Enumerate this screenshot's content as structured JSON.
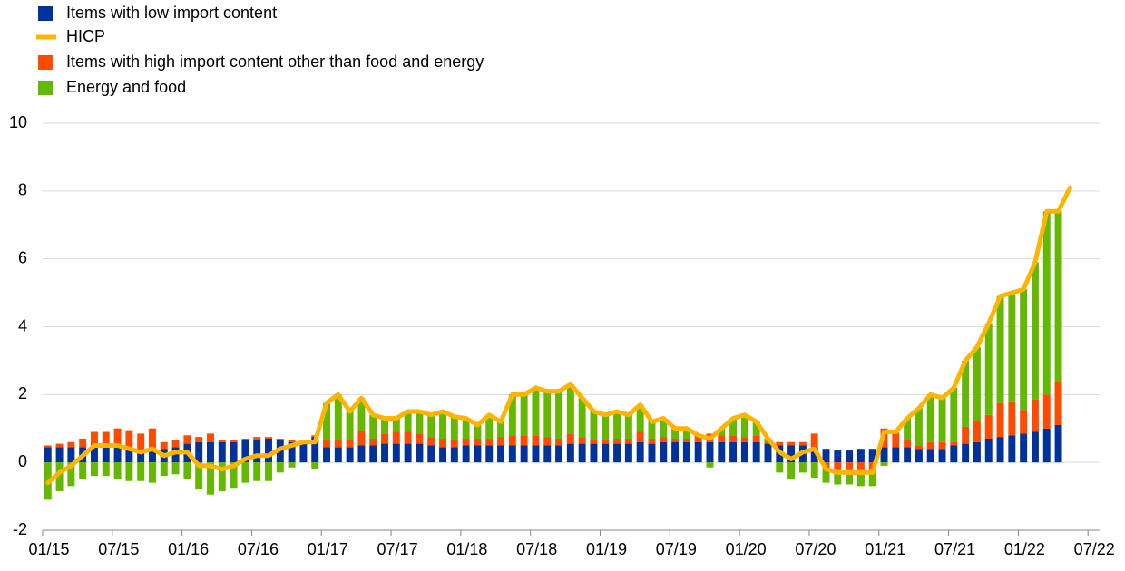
{
  "chart_data": {
    "type": "stacked-bar-line",
    "categories": [
      "01/15",
      null,
      null,
      null,
      null,
      null,
      "07/15",
      null,
      null,
      null,
      null,
      null,
      "01/16",
      null,
      null,
      null,
      null,
      null,
      "07/16",
      null,
      null,
      null,
      null,
      null,
      "01/17",
      null,
      null,
      null,
      null,
      null,
      "07/17",
      null,
      null,
      null,
      null,
      null,
      "01/18",
      null,
      null,
      null,
      null,
      null,
      "07/18",
      null,
      null,
      null,
      null,
      null,
      "01/19",
      null,
      null,
      null,
      null,
      null,
      "07/19",
      null,
      null,
      null,
      null,
      null,
      "01/20",
      null,
      null,
      null,
      null,
      null,
      "07/20",
      null,
      null,
      null,
      null,
      null,
      "01/21",
      null,
      null,
      null,
      null,
      null,
      "07/21",
      null,
      null,
      null,
      null,
      null,
      "01/22",
      null,
      null,
      null,
      null,
      null,
      "07/22"
    ],
    "series": [
      {
        "name": "Items with low import content",
        "color": "#003299",
        "kind": "bar",
        "values": [
          0.45,
          0.45,
          0.45,
          0.45,
          0.45,
          0.45,
          0.45,
          0.4,
          0.35,
          0.4,
          0.4,
          0.45,
          0.55,
          0.6,
          0.6,
          0.6,
          0.6,
          0.65,
          0.65,
          0.7,
          0.65,
          0.6,
          0.55,
          0.75,
          0.45,
          0.45,
          0.45,
          0.5,
          0.5,
          0.55,
          0.55,
          0.55,
          0.55,
          0.5,
          0.45,
          0.45,
          0.5,
          0.5,
          0.5,
          0.5,
          0.5,
          0.5,
          0.5,
          0.5,
          0.5,
          0.55,
          0.55,
          0.55,
          0.55,
          0.55,
          0.55,
          0.6,
          0.55,
          0.6,
          0.6,
          0.6,
          0.6,
          0.6,
          0.6,
          0.6,
          0.6,
          0.6,
          0.55,
          0.5,
          0.5,
          0.5,
          0.45,
          0.4,
          0.35,
          0.35,
          0.4,
          0.4,
          0.45,
          0.45,
          0.45,
          0.4,
          0.4,
          0.4,
          0.5,
          0.55,
          0.6,
          0.7,
          0.75,
          0.8,
          0.85,
          0.9,
          1.0,
          1.1,
          null,
          null,
          null
        ]
      },
      {
        "name": "HICP",
        "color": "#ffb400",
        "kind": "line",
        "values": [
          -0.6,
          -0.3,
          -0.1,
          0.2,
          0.5,
          0.5,
          0.5,
          0.4,
          0.3,
          0.4,
          0.2,
          0.3,
          0.3,
          -0.1,
          -0.1,
          -0.2,
          -0.1,
          0.1,
          0.2,
          0.2,
          0.4,
          0.5,
          0.6,
          0.6,
          1.75,
          2.0,
          1.5,
          1.9,
          1.4,
          1.3,
          1.3,
          1.5,
          1.5,
          1.4,
          1.5,
          1.35,
          1.3,
          1.1,
          1.4,
          1.2,
          2.0,
          2.0,
          2.2,
          2.1,
          2.1,
          2.3,
          1.9,
          1.5,
          1.4,
          1.5,
          1.4,
          1.7,
          1.2,
          1.3,
          1.0,
          1.0,
          0.8,
          0.7,
          1.0,
          1.3,
          1.4,
          1.2,
          0.7,
          0.3,
          0.1,
          0.3,
          0.4,
          -0.2,
          -0.3,
          -0.3,
          -0.3,
          -0.3,
          0.9,
          0.9,
          1.3,
          1.6,
          2.0,
          1.9,
          2.2,
          3.0,
          3.4,
          4.1,
          4.9,
          5.0,
          5.1,
          5.9,
          7.4,
          7.4,
          8.1,
          null,
          null
        ]
      },
      {
        "name": "Items with high import content other than food and energy",
        "color": "#ff4b00",
        "kind": "bar",
        "values": [
          0.05,
          0.1,
          0.15,
          0.25,
          0.45,
          0.45,
          0.55,
          0.55,
          0.5,
          0.6,
          0.2,
          0.2,
          0.25,
          0.15,
          0.25,
          0.05,
          0.05,
          0.05,
          0.1,
          0.05,
          0.05,
          0.05,
          0.05,
          0.05,
          0.2,
          0.2,
          0.2,
          0.45,
          0.2,
          0.3,
          0.35,
          0.35,
          0.3,
          0.25,
          0.25,
          0.2,
          0.2,
          0.2,
          0.2,
          0.25,
          0.3,
          0.3,
          0.3,
          0.25,
          0.2,
          0.3,
          0.2,
          0.1,
          0.1,
          0.15,
          0.15,
          0.3,
          0.15,
          0.15,
          0.1,
          0.1,
          0.2,
          0.25,
          0.2,
          0.2,
          0.15,
          0.2,
          0.05,
          0.1,
          0.1,
          0.1,
          0.4,
          -0.2,
          -0.2,
          -0.2,
          -0.2,
          -0.2,
          0.55,
          0.4,
          0.2,
          0.1,
          0.2,
          0.2,
          0.1,
          0.5,
          0.65,
          0.7,
          1.0,
          1.0,
          0.7,
          0.95,
          1.0,
          1.3,
          null,
          null,
          null
        ]
      },
      {
        "name": "Energy and food",
        "color": "#65b800",
        "kind": "bar",
        "values": [
          -1.1,
          -0.85,
          -0.7,
          -0.5,
          -0.4,
          -0.4,
          -0.5,
          -0.55,
          -0.55,
          -0.6,
          -0.4,
          -0.35,
          -0.5,
          -0.8,
          -0.95,
          -0.85,
          -0.75,
          -0.6,
          -0.55,
          -0.55,
          -0.3,
          -0.15,
          0,
          -0.2,
          1.1,
          1.35,
          0.85,
          0.95,
          0.7,
          0.45,
          0.4,
          0.6,
          0.65,
          0.65,
          0.8,
          0.7,
          0.6,
          0.4,
          0.7,
          0.45,
          1.2,
          1.2,
          1.4,
          1.35,
          1.4,
          1.45,
          1.15,
          0.85,
          0.75,
          0.8,
          0.7,
          0.8,
          0.5,
          0.55,
          0.3,
          0.3,
          0,
          -0.15,
          0.2,
          0.5,
          0.65,
          0.4,
          0.1,
          -0.3,
          -0.5,
          -0.3,
          -0.45,
          -0.4,
          -0.45,
          -0.45,
          -0.5,
          -0.5,
          -0.1,
          0.05,
          0.65,
          1.1,
          1.4,
          1.3,
          1.6,
          1.95,
          2.15,
          2.7,
          3.15,
          3.2,
          3.55,
          4.05,
          5.4,
          5.0,
          null,
          null,
          null
        ]
      }
    ],
    "ylim": [
      -2,
      10
    ],
    "yticks": [
      -2,
      0,
      2,
      4,
      6,
      8,
      10
    ],
    "grid": true
  }
}
